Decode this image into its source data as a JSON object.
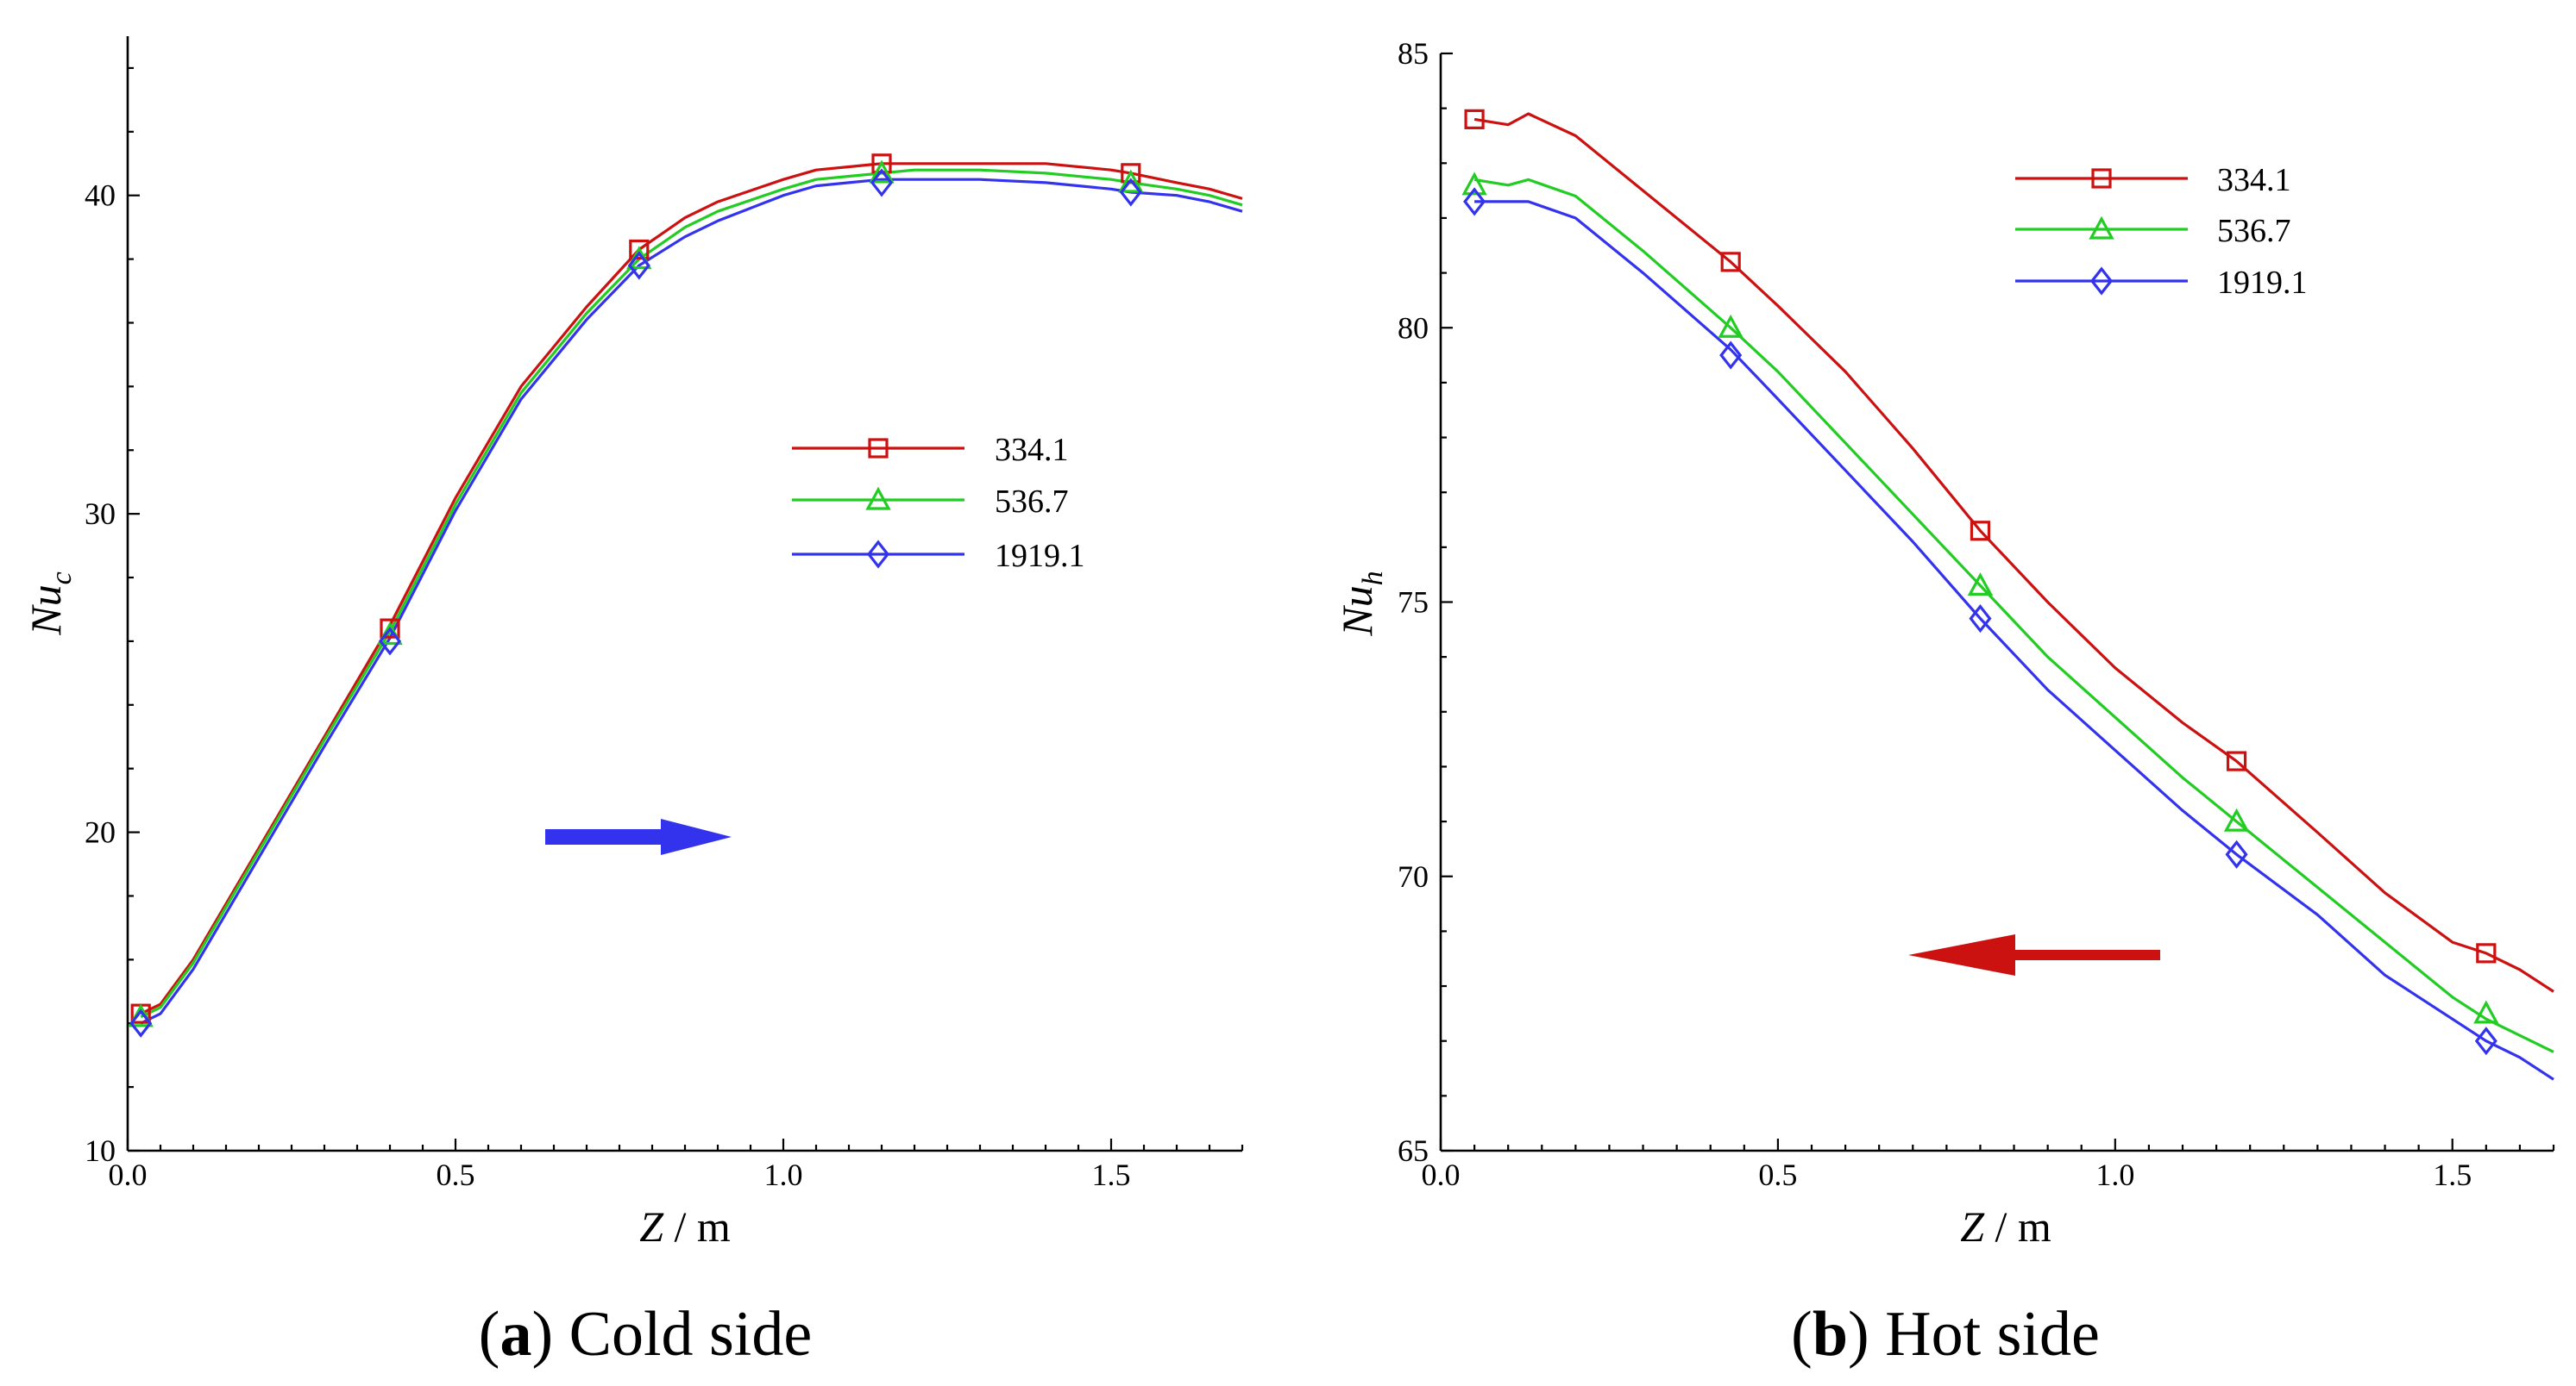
{
  "chart_data": [
    {
      "type": "line",
      "panel": "a",
      "caption_letter": "a",
      "caption_text": "Cold side",
      "xlabel_var": "Z",
      "xlabel_unit": " / m",
      "ylabel_var": "Nu",
      "ylabel_sub": "c",
      "xlim": [
        0,
        1.7
      ],
      "ylim": [
        10,
        45
      ],
      "xticks": [
        0.0,
        0.5,
        1.0,
        1.5
      ],
      "xtick_labels": [
        "0.0",
        "0.5",
        "1.0",
        "1.5"
      ],
      "yticks": [
        10,
        20,
        30,
        40
      ],
      "ytick_labels": [
        "10",
        "20",
        "30",
        "40"
      ],
      "legend_position": "center-right",
      "flow_arrow": {
        "direction": "right",
        "color": "#3333ee"
      },
      "series": [
        {
          "name": "334.1",
          "color": "#cc1111",
          "marker": "square",
          "x": [
            0.02,
            0.05,
            0.1,
            0.2,
            0.3,
            0.4,
            0.5,
            0.6,
            0.7,
            0.78,
            0.85,
            0.9,
            1.0,
            1.05,
            1.1,
            1.15,
            1.2,
            1.3,
            1.4,
            1.5,
            1.53,
            1.6,
            1.65,
            1.7
          ],
          "y": [
            14.3,
            14.6,
            16.0,
            19.5,
            23.0,
            26.5,
            30.5,
            34.0,
            36.5,
            38.3,
            39.3,
            39.8,
            40.5,
            40.8,
            40.9,
            41.0,
            41.0,
            41.0,
            41.0,
            40.8,
            40.7,
            40.4,
            40.2,
            39.9
          ],
          "marker_x": [
            0.02,
            0.4,
            0.78,
            1.15,
            1.53
          ],
          "marker_y": [
            14.3,
            26.4,
            38.3,
            41.0,
            40.7
          ]
        },
        {
          "name": "536.7",
          "color": "#22cc22",
          "marker": "triangle",
          "x": [
            0.02,
            0.05,
            0.1,
            0.2,
            0.3,
            0.4,
            0.5,
            0.6,
            0.7,
            0.78,
            0.85,
            0.9,
            1.0,
            1.05,
            1.1,
            1.15,
            1.2,
            1.3,
            1.4,
            1.5,
            1.53,
            1.6,
            1.65,
            1.7
          ],
          "y": [
            14.2,
            14.5,
            15.9,
            19.4,
            22.9,
            26.3,
            30.3,
            33.8,
            36.3,
            38.0,
            39.0,
            39.5,
            40.2,
            40.5,
            40.6,
            40.7,
            40.8,
            40.8,
            40.7,
            40.5,
            40.4,
            40.2,
            40.0,
            39.7
          ],
          "marker_x": [
            0.02,
            0.4,
            0.78,
            1.15,
            1.53
          ],
          "marker_y": [
            14.2,
            26.2,
            38.0,
            40.7,
            40.4
          ]
        },
        {
          "name": "1919.1",
          "color": "#3333ee",
          "marker": "diamond",
          "x": [
            0.02,
            0.05,
            0.1,
            0.2,
            0.3,
            0.4,
            0.5,
            0.6,
            0.7,
            0.78,
            0.85,
            0.9,
            1.0,
            1.05,
            1.1,
            1.15,
            1.2,
            1.3,
            1.4,
            1.5,
            1.53,
            1.6,
            1.65,
            1.7
          ],
          "y": [
            14.0,
            14.3,
            15.7,
            19.2,
            22.7,
            26.1,
            30.1,
            33.6,
            36.1,
            37.8,
            38.7,
            39.2,
            40.0,
            40.3,
            40.4,
            40.5,
            40.5,
            40.5,
            40.4,
            40.2,
            40.1,
            40.0,
            39.8,
            39.5
          ],
          "marker_x": [
            0.02,
            0.4,
            0.78,
            1.15,
            1.53
          ],
          "marker_y": [
            14.0,
            26.0,
            37.8,
            40.4,
            40.1
          ]
        }
      ]
    },
    {
      "type": "line",
      "panel": "b",
      "caption_letter": "b",
      "caption_text": "Hot side",
      "xlabel_var": "Z",
      "xlabel_unit": " / m",
      "ylabel_var": "Nu",
      "ylabel_sub": "h",
      "xlim": [
        0,
        1.65
      ],
      "ylim": [
        65,
        85
      ],
      "xticks": [
        0.0,
        0.5,
        1.0,
        1.5
      ],
      "xtick_labels": [
        "0.0",
        "0.5",
        "1.0",
        "1.5"
      ],
      "yticks": [
        65,
        70,
        75,
        80,
        85
      ],
      "ytick_labels": [
        "65",
        "70",
        "75",
        "80",
        "85"
      ],
      "legend_position": "top-right",
      "flow_arrow": {
        "direction": "left",
        "color": "#cc1111"
      },
      "series": [
        {
          "name": "334.1",
          "color": "#cc1111",
          "marker": "square",
          "x": [
            0.05,
            0.1,
            0.13,
            0.2,
            0.3,
            0.43,
            0.5,
            0.6,
            0.7,
            0.8,
            0.9,
            1.0,
            1.1,
            1.18,
            1.3,
            1.4,
            1.5,
            1.55,
            1.6,
            1.65
          ],
          "y": [
            83.8,
            83.7,
            83.9,
            83.5,
            82.5,
            81.2,
            80.4,
            79.2,
            77.8,
            76.3,
            75.0,
            73.8,
            72.8,
            72.1,
            70.8,
            69.7,
            68.8,
            68.6,
            68.3,
            67.9
          ],
          "marker_x": [
            0.05,
            0.43,
            0.8,
            1.18,
            1.55
          ],
          "marker_y": [
            83.8,
            81.2,
            76.3,
            72.1,
            68.6
          ]
        },
        {
          "name": "536.7",
          "color": "#22cc22",
          "marker": "triangle",
          "x": [
            0.05,
            0.1,
            0.13,
            0.2,
            0.3,
            0.43,
            0.5,
            0.6,
            0.7,
            0.8,
            0.9,
            1.0,
            1.1,
            1.18,
            1.3,
            1.4,
            1.5,
            1.55,
            1.6,
            1.65
          ],
          "y": [
            82.7,
            82.6,
            82.7,
            82.4,
            81.4,
            80.0,
            79.2,
            77.9,
            76.6,
            75.3,
            74.0,
            72.9,
            71.8,
            71.0,
            69.8,
            68.8,
            67.8,
            67.4,
            67.1,
            66.8
          ],
          "marker_x": [
            0.05,
            0.43,
            0.8,
            1.18,
            1.55
          ],
          "marker_y": [
            82.6,
            80.0,
            75.3,
            71.0,
            67.5
          ]
        },
        {
          "name": "1919.1",
          "color": "#3333ee",
          "marker": "diamond",
          "x": [
            0.05,
            0.1,
            0.13,
            0.2,
            0.3,
            0.43,
            0.5,
            0.6,
            0.7,
            0.8,
            0.9,
            1.0,
            1.1,
            1.18,
            1.3,
            1.4,
            1.5,
            1.55,
            1.6,
            1.65
          ],
          "y": [
            82.3,
            82.3,
            82.3,
            82.0,
            81.0,
            79.6,
            78.7,
            77.4,
            76.1,
            74.7,
            73.4,
            72.3,
            71.2,
            70.4,
            69.3,
            68.2,
            67.4,
            67.0,
            66.7,
            66.3
          ],
          "marker_x": [
            0.05,
            0.43,
            0.8,
            1.18,
            1.55
          ],
          "marker_y": [
            82.3,
            79.5,
            74.7,
            70.4,
            67.0
          ]
        }
      ]
    }
  ]
}
